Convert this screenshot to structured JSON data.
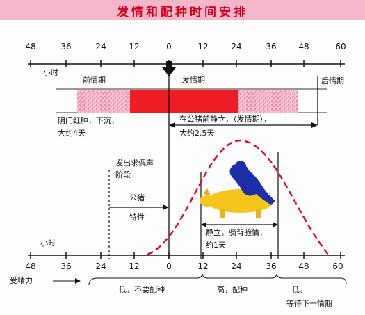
{
  "title": "发情和配种时间安排",
  "top_axis": {
    "ticks": [
      "48",
      "36",
      "24",
      "12",
      "0",
      "12",
      "24",
      "36",
      "48",
      "60"
    ],
    "unit_label": "小时"
  },
  "phases": {
    "proestrus": "前情期",
    "estrus": "发情期",
    "metestrus": "后情期"
  },
  "labels": {
    "vulva_line1": "阴门红肿，下沉，",
    "vulva_line2": "大约4天",
    "standing_line1": "在公猪前静立，（发情期），",
    "standing_line2": "大约2.5天",
    "courtship_line1": "发出求偶声",
    "courtship_line2": "阶段",
    "boar": "公猪",
    "trait": "特性",
    "mount_line1": "静立，骑背验情，",
    "mount_line2": "约1天"
  },
  "bottom_axis": {
    "ticks": [
      "48",
      "36",
      "24",
      "12",
      "0",
      "12",
      "24",
      "36",
      "48",
      "60"
    ],
    "unit_label": "小时",
    "fertility_label": "受精力"
  },
  "breeding": {
    "low": "低，不要配种",
    "high": "高，配种",
    "later_line1": "低，",
    "later_line2": "等待下一情期"
  },
  "colors": {
    "title_bg": "#f3b7c9",
    "title_text": "#d4001f",
    "heat_bar": "#ee1c24",
    "speckle_bar": "#f6c6d6",
    "curve": "#e3002c",
    "arrow_black": "#111111",
    "rider": "#1c2fa8",
    "pig": "#f5c51a"
  }
}
